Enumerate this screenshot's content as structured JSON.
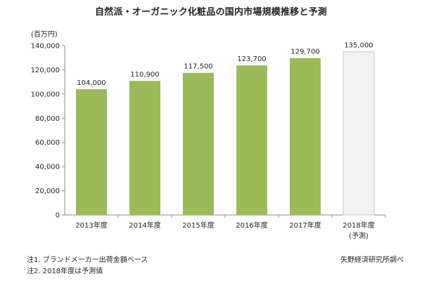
{
  "chart_data": {
    "type": "bar",
    "title": "自然派・オーガニック化粧品の国内市場規模推移と予測",
    "unit": "(百万円)",
    "categories": [
      "2013年度",
      "2014年度",
      "2015年度",
      "2016年度",
      "2017年度",
      "2018年度"
    ],
    "category_sublabels": [
      "",
      "",
      "",
      "",
      "",
      "(予測)"
    ],
    "values": [
      104000,
      110900,
      117500,
      123700,
      129700,
      135000
    ],
    "value_labels": [
      "104,000",
      "110,900",
      "117,500",
      "123,700",
      "129,700",
      "135,000"
    ],
    "forecast": [
      false,
      false,
      false,
      false,
      false,
      true
    ],
    "ylim": [
      0,
      140000
    ],
    "yticks": [
      0,
      20000,
      40000,
      60000,
      80000,
      100000,
      120000,
      140000
    ],
    "ytick_labels": [
      "0",
      "20,000",
      "40,000",
      "60,000",
      "80,000",
      "100,000",
      "120,000",
      "140,000"
    ],
    "grid": false,
    "colors": {
      "bar": "#9bbb59",
      "forecast_bar": "#f2f2f2",
      "forecast_border": "#c8c8c8"
    }
  },
  "notes": [
    "注1. ブランドメーカー出荷金額ベース",
    "注2. 2018年度は予測値"
  ],
  "source": "矢野経済研究所調べ"
}
